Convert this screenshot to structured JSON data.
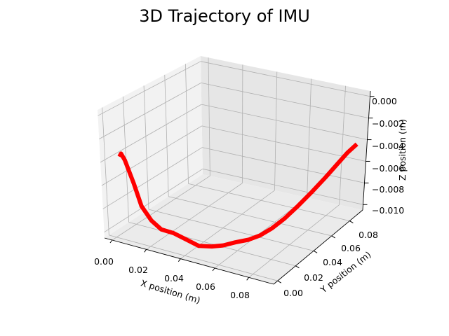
{
  "chart_data": {
    "type": "line",
    "title": "3D Trajectory of IMU",
    "xlabel": "X position (m)",
    "ylabel": "Y position (m)",
    "zlabel": "Z position (m)",
    "x_ticks": [
      "0.00",
      "0.02",
      "0.04",
      "0.06",
      "0.08"
    ],
    "y_ticks": [
      "0.00",
      "0.02",
      "0.04",
      "0.06",
      "0.08"
    ],
    "z_ticks": [
      "0.000",
      "−0.002",
      "−0.004",
      "−0.006",
      "−0.008",
      "−0.010"
    ],
    "grid": true,
    "series": [
      {
        "color": "#ff0000",
        "points": [
          [
            0.002,
            0.003,
            -0.0037
          ],
          [
            0.003,
            0.003,
            -0.0034
          ],
          [
            0.005,
            0.003,
            -0.0039
          ],
          [
            0.009,
            0.004,
            -0.0058
          ],
          [
            0.013,
            0.004,
            -0.0076
          ],
          [
            0.018,
            0.005,
            -0.0087
          ],
          [
            0.023,
            0.006,
            -0.0093
          ],
          [
            0.029,
            0.008,
            -0.0095
          ],
          [
            0.035,
            0.01,
            -0.0099
          ],
          [
            0.041,
            0.013,
            -0.0104
          ],
          [
            0.047,
            0.016,
            -0.0104
          ],
          [
            0.052,
            0.019,
            -0.0103
          ],
          [
            0.057,
            0.023,
            -0.0101
          ],
          [
            0.062,
            0.028,
            -0.01
          ],
          [
            0.066,
            0.033,
            -0.0098
          ],
          [
            0.07,
            0.039,
            -0.0094
          ],
          [
            0.074,
            0.045,
            -0.0088
          ],
          [
            0.078,
            0.052,
            -0.008
          ],
          [
            0.082,
            0.059,
            -0.0071
          ],
          [
            0.086,
            0.066,
            -0.0061
          ],
          [
            0.089,
            0.073,
            -0.0052
          ],
          [
            0.091,
            0.08,
            -0.0045
          ],
          [
            0.093,
            0.086,
            -0.004
          ]
        ]
      }
    ]
  }
}
